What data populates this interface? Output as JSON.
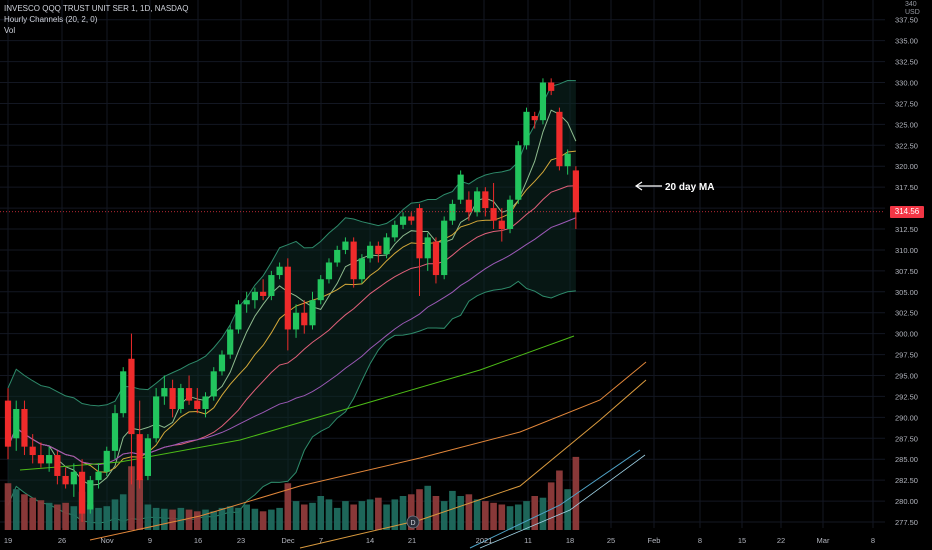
{
  "header": {
    "symbol": "INVESCO QQQ TRUST UNIT SER 1, 1D, NASDAQ",
    "indicator": "Hourly Channels (20, 2, 0)",
    "volume": "Vol"
  },
  "axis": {
    "currency_top": "340",
    "currency": "USD",
    "last_price": "314.56"
  },
  "annotation": "20 day MA",
  "colors": {
    "up": "#22c55e",
    "down": "#ef2b2b",
    "bg": "#000000"
  },
  "chart_data": {
    "type": "candlestick",
    "title": "INVESCO QQQ TRUST UNIT SER 1, 1D, NASDAQ",
    "ylim": [
      277.5,
      340
    ],
    "y_ticks": [
      "337.50",
      "335.00",
      "332.50",
      "330.00",
      "327.50",
      "325.00",
      "322.50",
      "320.00",
      "317.50",
      "315.00",
      "312.50",
      "310.00",
      "307.50",
      "305.00",
      "302.50",
      "300.00",
      "297.50",
      "295.00",
      "292.50",
      "290.00",
      "287.50",
      "285.00",
      "282.50",
      "280.00",
      "277.50"
    ],
    "x_ticks": [
      "19",
      "26",
      "Nov",
      "9",
      "16",
      "23",
      "Dec",
      "7",
      "14",
      "21",
      "2021",
      "11",
      "18",
      "25",
      "Feb",
      "8",
      "15",
      "22",
      "Mar",
      "8"
    ],
    "ohlc": [
      {
        "o": 292.0,
        "h": 293.5,
        "l": 285.0,
        "c": 286.5
      },
      {
        "o": 287.5,
        "h": 292.0,
        "l": 286.0,
        "c": 291.0
      },
      {
        "o": 291.0,
        "h": 292.0,
        "l": 285.5,
        "c": 286.5
      },
      {
        "o": 286.5,
        "h": 288.0,
        "l": 284.5,
        "c": 285.5
      },
      {
        "o": 285.5,
        "h": 287.0,
        "l": 284.0,
        "c": 284.5
      },
      {
        "o": 284.5,
        "h": 286.5,
        "l": 283.5,
        "c": 285.5
      },
      {
        "o": 285.5,
        "h": 286.0,
        "l": 282.0,
        "c": 283.0
      },
      {
        "o": 283.0,
        "h": 284.0,
        "l": 281.5,
        "c": 282.0
      },
      {
        "o": 282.0,
        "h": 284.5,
        "l": 280.5,
        "c": 283.5
      },
      {
        "o": 283.5,
        "h": 285.0,
        "l": 277.5,
        "c": 278.5
      },
      {
        "o": 279.0,
        "h": 283.0,
        "l": 278.5,
        "c": 282.5
      },
      {
        "o": 282.5,
        "h": 284.5,
        "l": 281.5,
        "c": 283.5
      },
      {
        "o": 283.5,
        "h": 286.5,
        "l": 283.0,
        "c": 286.0
      },
      {
        "o": 286.0,
        "h": 291.5,
        "l": 285.0,
        "c": 290.5
      },
      {
        "o": 290.5,
        "h": 296.0,
        "l": 290.0,
        "c": 295.5
      },
      {
        "o": 297.0,
        "h": 300.0,
        "l": 282.0,
        "c": 288.0
      },
      {
        "o": 288.0,
        "h": 292.0,
        "l": 281.5,
        "c": 282.5
      },
      {
        "o": 283.0,
        "h": 288.0,
        "l": 282.5,
        "c": 287.5
      },
      {
        "o": 287.5,
        "h": 293.5,
        "l": 287.0,
        "c": 292.5
      },
      {
        "o": 292.5,
        "h": 295.0,
        "l": 291.5,
        "c": 293.5
      },
      {
        "o": 293.5,
        "h": 294.5,
        "l": 290.0,
        "c": 291.0
      },
      {
        "o": 291.0,
        "h": 294.0,
        "l": 290.5,
        "c": 293.5
      },
      {
        "o": 293.5,
        "h": 295.0,
        "l": 291.5,
        "c": 292.0
      },
      {
        "o": 292.0,
        "h": 293.5,
        "l": 290.5,
        "c": 291.0
      },
      {
        "o": 291.0,
        "h": 293.0,
        "l": 290.0,
        "c": 292.5
      },
      {
        "o": 292.5,
        "h": 296.0,
        "l": 292.0,
        "c": 295.5
      },
      {
        "o": 295.5,
        "h": 298.0,
        "l": 295.0,
        "c": 297.5
      },
      {
        "o": 297.5,
        "h": 301.0,
        "l": 297.0,
        "c": 300.5
      },
      {
        "o": 300.5,
        "h": 304.0,
        "l": 300.0,
        "c": 303.5
      },
      {
        "o": 303.5,
        "h": 305.0,
        "l": 302.5,
        "c": 304.0
      },
      {
        "o": 304.0,
        "h": 305.5,
        "l": 303.0,
        "c": 305.0
      },
      {
        "o": 305.0,
        "h": 306.5,
        "l": 304.0,
        "c": 304.5
      },
      {
        "o": 304.5,
        "h": 307.5,
        "l": 304.0,
        "c": 307.0
      },
      {
        "o": 307.0,
        "h": 308.5,
        "l": 306.5,
        "c": 308.0
      },
      {
        "o": 308.0,
        "h": 309.0,
        "l": 298.0,
        "c": 300.5
      },
      {
        "o": 300.5,
        "h": 303.5,
        "l": 299.5,
        "c": 302.5
      },
      {
        "o": 302.5,
        "h": 304.0,
        "l": 300.0,
        "c": 301.0
      },
      {
        "o": 301.0,
        "h": 305.0,
        "l": 300.5,
        "c": 304.0
      },
      {
        "o": 304.0,
        "h": 307.0,
        "l": 303.5,
        "c": 306.5
      },
      {
        "o": 306.5,
        "h": 309.0,
        "l": 306.0,
        "c": 308.5
      },
      {
        "o": 308.5,
        "h": 310.5,
        "l": 308.0,
        "c": 310.0
      },
      {
        "o": 310.0,
        "h": 311.5,
        "l": 309.5,
        "c": 311.0
      },
      {
        "o": 311.0,
        "h": 311.5,
        "l": 305.5,
        "c": 306.5
      },
      {
        "o": 306.5,
        "h": 309.5,
        "l": 306.0,
        "c": 309.0
      },
      {
        "o": 309.0,
        "h": 311.0,
        "l": 308.5,
        "c": 310.5
      },
      {
        "o": 310.5,
        "h": 311.0,
        "l": 308.5,
        "c": 309.5
      },
      {
        "o": 309.5,
        "h": 312.0,
        "l": 309.0,
        "c": 311.5
      },
      {
        "o": 311.5,
        "h": 313.5,
        "l": 311.0,
        "c": 313.0
      },
      {
        "o": 313.0,
        "h": 314.5,
        "l": 312.5,
        "c": 314.0
      },
      {
        "o": 314.0,
        "h": 314.5,
        "l": 313.0,
        "c": 313.5
      },
      {
        "o": 315.0,
        "h": 315.5,
        "l": 304.5,
        "c": 309.0
      },
      {
        "o": 309.0,
        "h": 312.0,
        "l": 307.5,
        "c": 311.5
      },
      {
        "o": 311.0,
        "h": 311.5,
        "l": 306.0,
        "c": 307.0
      },
      {
        "o": 307.0,
        "h": 314.0,
        "l": 306.5,
        "c": 313.5
      },
      {
        "o": 313.5,
        "h": 316.0,
        "l": 313.0,
        "c": 315.5
      },
      {
        "o": 316.0,
        "h": 319.5,
        "l": 315.5,
        "c": 319.0
      },
      {
        "o": 316.0,
        "h": 317.0,
        "l": 313.5,
        "c": 314.5
      },
      {
        "o": 314.5,
        "h": 317.5,
        "l": 314.0,
        "c": 317.0
      },
      {
        "o": 317.0,
        "h": 317.5,
        "l": 314.0,
        "c": 315.0
      },
      {
        "o": 315.0,
        "h": 318.0,
        "l": 312.5,
        "c": 313.5
      },
      {
        "o": 313.5,
        "h": 315.0,
        "l": 311.0,
        "c": 312.5
      },
      {
        "o": 312.5,
        "h": 316.5,
        "l": 312.0,
        "c": 316.0
      },
      {
        "o": 316.0,
        "h": 323.0,
        "l": 315.5,
        "c": 322.5
      },
      {
        "o": 322.5,
        "h": 327.0,
        "l": 322.0,
        "c": 326.5
      },
      {
        "o": 326.0,
        "h": 326.5,
        "l": 324.5,
        "c": 325.5
      },
      {
        "o": 325.5,
        "h": 330.5,
        "l": 325.0,
        "c": 330.0
      },
      {
        "o": 330.0,
        "h": 330.5,
        "l": 328.5,
        "c": 329.0
      },
      {
        "o": 326.5,
        "h": 327.0,
        "l": 319.5,
        "c": 320.0
      },
      {
        "o": 320.0,
        "h": 322.0,
        "l": 319.0,
        "c": 321.5
      },
      {
        "o": 319.5,
        "h": 320.0,
        "l": 312.5,
        "c": 314.5
      }
    ],
    "volume": [
      0.55,
      0.48,
      0.42,
      0.38,
      0.35,
      0.32,
      0.3,
      0.32,
      0.28,
      0.45,
      0.3,
      0.26,
      0.28,
      0.36,
      0.42,
      0.75,
      0.6,
      0.3,
      0.26,
      0.25,
      0.24,
      0.26,
      0.24,
      0.22,
      0.24,
      0.22,
      0.26,
      0.28,
      0.26,
      0.3,
      0.25,
      0.22,
      0.24,
      0.26,
      0.55,
      0.34,
      0.3,
      0.32,
      0.4,
      0.36,
      0.26,
      0.34,
      0.3,
      0.34,
      0.36,
      0.38,
      0.3,
      0.36,
      0.4,
      0.42,
      0.48,
      0.52,
      0.4,
      0.34,
      0.46,
      0.4,
      0.42,
      0.36,
      0.34,
      0.32,
      0.3,
      0.28,
      0.3,
      0.34,
      0.4,
      0.38,
      0.56,
      0.7,
      0.48,
      0.86
    ],
    "last_price": 314.56
  }
}
